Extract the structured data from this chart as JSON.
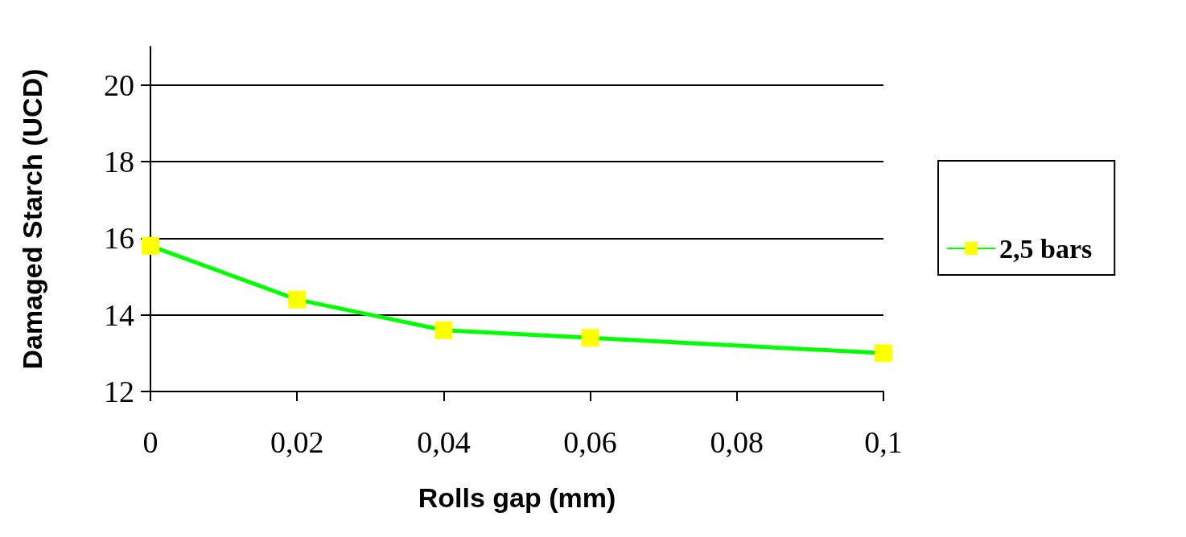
{
  "chart_data": {
    "type": "line",
    "xlabel": "Rolls gap (mm)",
    "ylabel": "Damaged Starch (UCD)",
    "x": [
      0,
      0.02,
      0.04,
      0.06,
      0.1
    ],
    "series": [
      {
        "name": "2,5 bars",
        "color": "#00ff00",
        "colors": [
          "#ffff00",
          "#ffff00",
          "#ffff00",
          "#ffff00",
          "#ffff00"
        ],
        "values": [
          15.8,
          14.4,
          13.6,
          13.4,
          13.0
        ]
      }
    ],
    "xlim": [
      0,
      0.1
    ],
    "xticks": [
      {
        "value": 0,
        "label": "0"
      },
      {
        "value": 0.02,
        "label": "0,02"
      },
      {
        "value": 0.04,
        "label": "0,04"
      },
      {
        "value": 0.06,
        "label": "0,06"
      },
      {
        "value": 0.08,
        "label": "0,08"
      },
      {
        "value": 0.1,
        "label": "0,1"
      }
    ],
    "ylim": [
      12,
      21
    ],
    "yticks": [
      12,
      14,
      16,
      18,
      20
    ],
    "grid": "y",
    "legend": "right",
    "marker": "square",
    "line_style": "solid"
  }
}
